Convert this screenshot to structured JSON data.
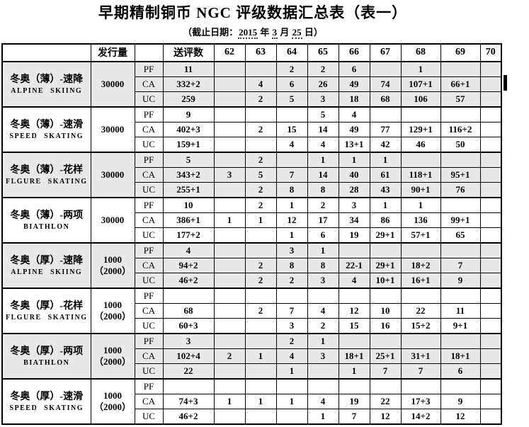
{
  "title": "早期精制铜币 NGC 评级数据汇总表（表一）",
  "subtitle": {
    "prefix": "（截止日期：",
    "year": "2015",
    "year_unit": " 年 ",
    "month": "3",
    "month_unit": " 月 ",
    "day": "25",
    "day_unit": " 日）"
  },
  "colors": {
    "band": "#e8e8e8",
    "border": "#000000"
  },
  "table": {
    "header": {
      "mintage": "发行量",
      "submitted": "送评数",
      "grade_cols": [
        "62",
        "63",
        "64",
        "65",
        "66",
        "67",
        "68",
        "69",
        "70"
      ]
    },
    "groups": [
      {
        "name_cn": "冬奥（薄）-速降",
        "name_en": "ALPINE SKIING",
        "mintage": [
          "30000"
        ],
        "shaded": true,
        "rows": [
          {
            "label": "PF",
            "submitted": "11",
            "grades": [
              "",
              "",
              "2",
              "2",
              "6",
              "",
              "1",
              "",
              ""
            ]
          },
          {
            "label": "CA",
            "submitted": "332+2",
            "grades": [
              "",
              "4",
              "6",
              "26",
              "49",
              "74",
              "107+1",
              "66+1",
              ""
            ]
          },
          {
            "label": "UC",
            "submitted": "259",
            "grades": [
              "",
              "2",
              "5",
              "3",
              "18",
              "68",
              "106",
              "57",
              ""
            ]
          }
        ]
      },
      {
        "name_cn": "冬奥（薄）-速滑",
        "name_en": "SPEED SKATING",
        "mintage": [
          "30000"
        ],
        "shaded": false,
        "rows": [
          {
            "label": "PF",
            "submitted": "9",
            "grades": [
              "",
              "",
              "",
              "5",
              "4",
              "",
              "",
              "",
              ""
            ]
          },
          {
            "label": "CA",
            "submitted": "402+3",
            "grades": [
              "",
              "2",
              "15",
              "14",
              "49",
              "77",
              "129+1",
              "116+2",
              ""
            ]
          },
          {
            "label": "UC",
            "submitted": "159+1",
            "grades": [
              "",
              "",
              "4",
              "4",
              "13+1",
              "42",
              "46",
              "50",
              ""
            ]
          }
        ]
      },
      {
        "name_cn": "冬奥（薄）-花样",
        "name_en": "FLGURE SKATING",
        "mintage": [
          "30000"
        ],
        "shaded": true,
        "rows": [
          {
            "label": "PF",
            "submitted": "5",
            "grades": [
              "",
              "2",
              "",
              "1",
              "1",
              "1",
              "",
              "",
              ""
            ]
          },
          {
            "label": "CA",
            "submitted": "343+2",
            "grades": [
              "3",
              "5",
              "7",
              "14",
              "40",
              "61",
              "118+1",
              "95+1",
              ""
            ]
          },
          {
            "label": "UC",
            "submitted": "255+1",
            "grades": [
              "",
              "2",
              "8",
              "8",
              "28",
              "43",
              "90+1",
              "76",
              ""
            ]
          }
        ]
      },
      {
        "name_cn": "冬奥（薄）-两项",
        "name_en": "BIATHLON",
        "mintage": [
          "30000"
        ],
        "shaded": false,
        "rows": [
          {
            "label": "PF",
            "submitted": "10",
            "grades": [
              "",
              "2",
              "1",
              "2",
              "3",
              "1",
              "1",
              "",
              ""
            ]
          },
          {
            "label": "CA",
            "submitted": "386+1",
            "grades": [
              "1",
              "1",
              "12",
              "17",
              "34",
              "86",
              "136",
              "99+1",
              ""
            ]
          },
          {
            "label": "UC",
            "submitted": "177+2",
            "grades": [
              "",
              "",
              "1",
              "6",
              "19",
              "29+1",
              "57+1",
              "65",
              ""
            ]
          }
        ]
      },
      {
        "name_cn": "冬奥（厚）-速降",
        "name_en": "ALPINE SKIING",
        "mintage": [
          "1000",
          "（2000）"
        ],
        "shaded": true,
        "rows": [
          {
            "label": "PF",
            "submitted": "4",
            "grades": [
              "",
              "",
              "3",
              "1",
              "",
              "",
              "",
              "",
              ""
            ]
          },
          {
            "label": "CA",
            "submitted": "94+2",
            "grades": [
              "",
              "2",
              "8",
              "8",
              "22-1",
              "29+1",
              "18+2",
              "7",
              ""
            ]
          },
          {
            "label": "UC",
            "submitted": "46+2",
            "grades": [
              "",
              "2",
              "2",
              "3",
              "4",
              "10+1",
              "16+1",
              "9",
              ""
            ]
          }
        ]
      },
      {
        "name_cn": "冬奥（厚）-花样",
        "name_en": "FLGURE SKATING",
        "mintage": [
          "1000",
          "（2000）"
        ],
        "shaded": false,
        "rows": [
          {
            "label": "PF",
            "submitted": "",
            "grades": [
              "",
              "",
              "",
              "",
              "",
              "",
              "",
              "",
              ""
            ]
          },
          {
            "label": "CA",
            "submitted": "68",
            "grades": [
              "",
              "2",
              "7",
              "4",
              "12",
              "10",
              "22",
              "11",
              ""
            ]
          },
          {
            "label": "UC",
            "submitted": "60+3",
            "grades": [
              "",
              "",
              "3",
              "2",
              "15",
              "16",
              "15+2",
              "9+1",
              ""
            ]
          }
        ]
      },
      {
        "name_cn": "冬奥（厚）-两项",
        "name_en": "BIATHLON",
        "mintage": [
          "1000",
          "（2000）"
        ],
        "shaded": true,
        "rows": [
          {
            "label": "PF",
            "submitted": "3",
            "grades": [
              "",
              "",
              "2",
              "1",
              "",
              "",
              "",
              "",
              ""
            ]
          },
          {
            "label": "CA",
            "submitted": "102+4",
            "grades": [
              "2",
              "1",
              "4",
              "3",
              "18+1",
              "25+1",
              "31+1",
              "18+1",
              ""
            ]
          },
          {
            "label": "UC",
            "submitted": "22",
            "grades": [
              "",
              "",
              "1",
              "",
              "1",
              "7",
              "7",
              "6",
              ""
            ]
          }
        ]
      },
      {
        "name_cn": "冬奥（厚）-速滑",
        "name_en": "SPEED SKATING",
        "mintage": [
          "1000",
          "（2000）"
        ],
        "shaded": false,
        "rows": [
          {
            "label": "PF",
            "submitted": "",
            "grades": [
              "",
              "",
              "",
              "",
              "",
              "",
              "",
              "",
              ""
            ]
          },
          {
            "label": "CA",
            "submitted": "74+3",
            "grades": [
              "1",
              "1",
              "1",
              "4",
              "19",
              "22",
              "17+3",
              "9",
              ""
            ]
          },
          {
            "label": "UC",
            "submitted": "46+2",
            "grades": [
              "",
              "",
              "",
              "1",
              "7",
              "12",
              "14+2",
              "12",
              ""
            ]
          }
        ]
      }
    ]
  }
}
